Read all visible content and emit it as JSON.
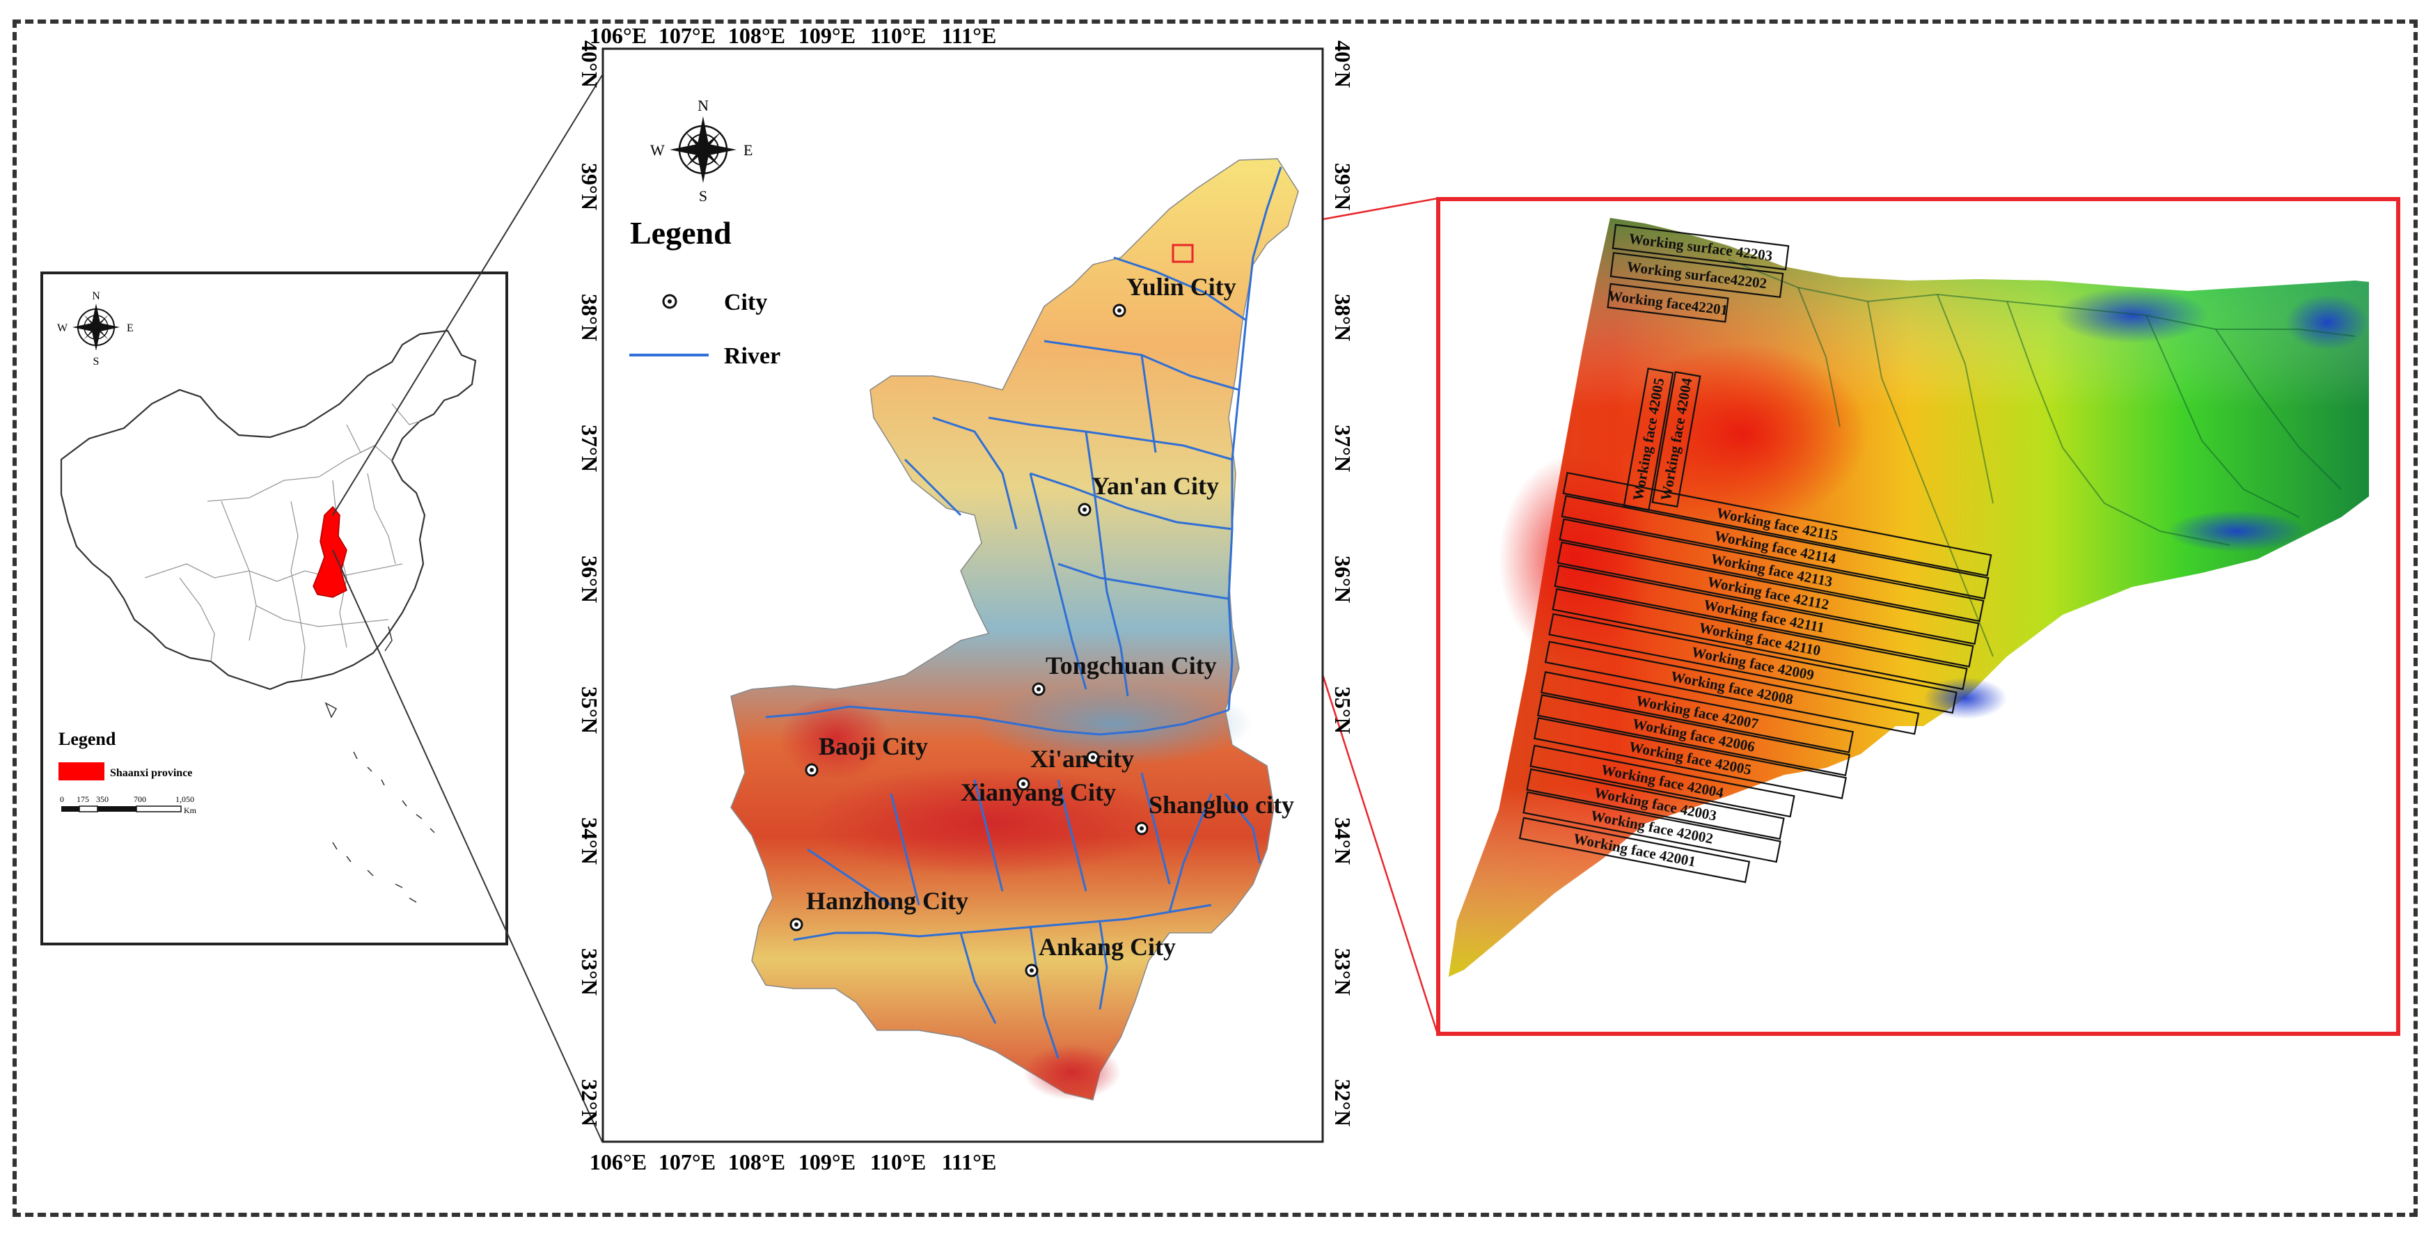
{
  "china_map": {
    "compass": {
      "n": "N",
      "s": "S",
      "e": "E",
      "w": "W"
    },
    "legend_title": "Legend",
    "legend_item": "Shaanxi province",
    "scale_ticks": [
      "0",
      "175",
      "350",
      "700",
      "1,050"
    ],
    "scale_unit": "Km",
    "province_color": "#ff0000"
  },
  "province_map": {
    "compass": {
      "n": "N",
      "s": "S",
      "e": "E",
      "w": "W"
    },
    "legend_title": "Legend",
    "legend_city": "City",
    "legend_river": "River",
    "river_color": "#2f6fd6",
    "lon_labels": [
      "106°E",
      "107°E",
      "108°E",
      "109°E",
      "110°E",
      "111°E"
    ],
    "lat_labels": [
      "40°N",
      "39°N",
      "38°N",
      "37°N",
      "36°N",
      "35°N",
      "34°N",
      "33°N",
      "32°N"
    ],
    "cities": [
      {
        "name": "Yulin City"
      },
      {
        "name": "Yan'an City"
      },
      {
        "name": "Tongchuan City"
      },
      {
        "name": "Baoji City"
      },
      {
        "name": "Xi'an city"
      },
      {
        "name": "Xianyang City"
      },
      {
        "name": "Shangluo city"
      },
      {
        "name": "Hanzhong City"
      },
      {
        "name": "Ankang City"
      }
    ]
  },
  "detail_map": {
    "border_color": "#e8262b",
    "working_faces": [
      "Working surface 42203",
      "Working surface42202",
      "Working face42201",
      "Working face 42005",
      "Working face 42004",
      "Working face 42115",
      "Working face 42114",
      "Working face 42113",
      "Working face 42112",
      "Working face 42111",
      "Working face 42110",
      "Working face 42009",
      "Working face 42008",
      "Working face 42007",
      "Working face 42006",
      "Working face 42005",
      "Working face 42004",
      "Working face 42003",
      "Working face 42002",
      "Working face 42001"
    ]
  }
}
